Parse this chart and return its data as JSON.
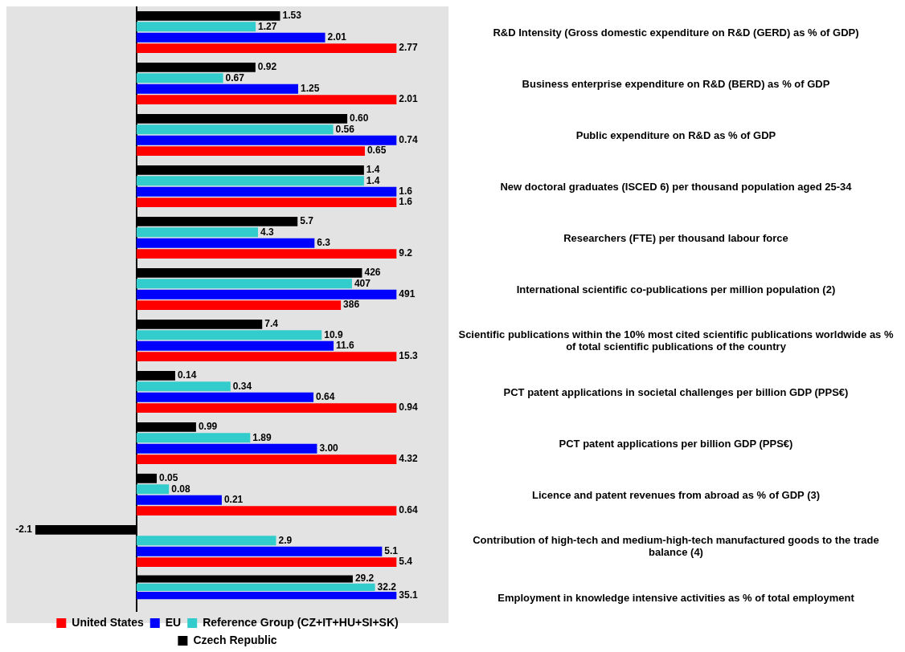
{
  "chart_data": [
    {
      "type": "bar",
      "orientation": "horizontal",
      "categories": [
        "R&D Intensity (Gross domestic expenditure on R&D (GERD) as % of GDP)"
      ],
      "series": [
        {
          "color": "#ff0000",
          "values": [
            2.77
          ],
          "value_labels": [
            "2.77"
          ]
        },
        {
          "color": "#0000ff",
          "values": [
            2.01
          ],
          "value_labels": [
            "2.01"
          ]
        },
        {
          "color": "#33cccc",
          "values": [
            1.27
          ],
          "value_labels": [
            "1.27"
          ]
        },
        {
          "color": "#000000",
          "values": [
            1.53
          ],
          "value_labels": [
            "1.53"
          ]
        }
      ]
    },
    {
      "type": "bar",
      "orientation": "horizontal",
      "categories": [
        "Business enterprise expenditure on R&D (BERD) as % of GDP"
      ],
      "series": [
        {
          "color": "#ff0000",
          "values": [
            2.01
          ],
          "value_labels": [
            "2.01"
          ]
        },
        {
          "color": "#0000ff",
          "values": [
            1.25
          ],
          "value_labels": [
            "1.25"
          ]
        },
        {
          "color": "#33cccc",
          "values": [
            0.67
          ],
          "value_labels": [
            "0.67"
          ]
        },
        {
          "color": "#000000",
          "values": [
            0.92
          ],
          "value_labels": [
            "0.92"
          ]
        }
      ]
    },
    {
      "type": "bar",
      "orientation": "horizontal",
      "categories": [
        "Public expenditure on R&D as % of GDP"
      ],
      "series": [
        {
          "color": "#ff0000",
          "values": [
            0.65
          ],
          "value_labels": [
            "0.65"
          ]
        },
        {
          "color": "#0000ff",
          "values": [
            0.74
          ],
          "value_labels": [
            "0.74"
          ]
        },
        {
          "color": "#33cccc",
          "values": [
            0.56
          ],
          "value_labels": [
            "0.56"
          ]
        },
        {
          "color": "#000000",
          "values": [
            0.6
          ],
          "value_labels": [
            "0.60"
          ]
        }
      ]
    },
    {
      "type": "bar",
      "orientation": "horizontal",
      "categories": [
        "New doctoral graduates (ISCED 6) per thousand population aged 25-34"
      ],
      "series": [
        {
          "color": "#ff0000",
          "values": [
            1.6
          ],
          "value_labels": [
            "1.6"
          ]
        },
        {
          "color": "#0000ff",
          "values": [
            1.6
          ],
          "value_labels": [
            "1.6"
          ]
        },
        {
          "color": "#33cccc",
          "values": [
            1.4
          ],
          "value_labels": [
            "1.4"
          ]
        },
        {
          "color": "#000000",
          "values": [
            1.4
          ],
          "value_labels": [
            "1.4"
          ]
        }
      ]
    },
    {
      "type": "bar",
      "orientation": "horizontal",
      "categories": [
        "Researchers (FTE) per thousand labour force"
      ],
      "series": [
        {
          "color": "#ff0000",
          "values": [
            9.2
          ],
          "value_labels": [
            "9.2"
          ]
        },
        {
          "color": "#0000ff",
          "values": [
            6.3
          ],
          "value_labels": [
            "6.3"
          ]
        },
        {
          "color": "#33cccc",
          "values": [
            4.3
          ],
          "value_labels": [
            "4.3"
          ]
        },
        {
          "color": "#000000",
          "values": [
            5.7
          ],
          "value_labels": [
            "5.7"
          ]
        }
      ]
    },
    {
      "type": "bar",
      "orientation": "horizontal",
      "categories": [
        "International scientific co-publications per million population (2)"
      ],
      "series": [
        {
          "color": "#ff0000",
          "values": [
            386
          ],
          "value_labels": [
            "386"
          ]
        },
        {
          "color": "#0000ff",
          "values": [
            491
          ],
          "value_labels": [
            "491"
          ]
        },
        {
          "color": "#33cccc",
          "values": [
            407
          ],
          "value_labels": [
            "407"
          ]
        },
        {
          "color": "#000000",
          "values": [
            426
          ],
          "value_labels": [
            "426"
          ]
        }
      ]
    },
    {
      "type": "bar",
      "orientation": "horizontal",
      "categories": [
        "Scientific publications within the 10% most cited scientific publications worldwide as % of total scientific publications of the country"
      ],
      "series": [
        {
          "color": "#ff0000",
          "values": [
            15.3
          ],
          "value_labels": [
            "15.3"
          ]
        },
        {
          "color": "#0000ff",
          "values": [
            11.6
          ],
          "value_labels": [
            "11.6"
          ]
        },
        {
          "color": "#33cccc",
          "values": [
            10.9
          ],
          "value_labels": [
            "10.9"
          ]
        },
        {
          "color": "#000000",
          "values": [
            7.4
          ],
          "value_labels": [
            "7.4"
          ]
        }
      ]
    },
    {
      "type": "bar",
      "orientation": "horizontal",
      "categories": [
        "PCT patent applications in societal challenges per billion GDP (PPS€)"
      ],
      "series": [
        {
          "color": "#ff0000",
          "values": [
            0.94
          ],
          "value_labels": [
            "0.94"
          ]
        },
        {
          "color": "#0000ff",
          "values": [
            0.64
          ],
          "value_labels": [
            "0.64"
          ]
        },
        {
          "color": "#33cccc",
          "values": [
            0.34
          ],
          "value_labels": [
            "0.34"
          ]
        },
        {
          "color": "#000000",
          "values": [
            0.14
          ],
          "value_labels": [
            "0.14"
          ]
        }
      ]
    },
    {
      "type": "bar",
      "orientation": "horizontal",
      "categories": [
        "PCT patent applications per billion GDP (PPS€)"
      ],
      "series": [
        {
          "color": "#ff0000",
          "values": [
            4.32
          ],
          "value_labels": [
            "4.32"
          ]
        },
        {
          "color": "#0000ff",
          "values": [
            3.0
          ],
          "value_labels": [
            "3.00"
          ]
        },
        {
          "color": "#33cccc",
          "values": [
            1.89
          ],
          "value_labels": [
            "1.89"
          ]
        },
        {
          "color": "#000000",
          "values": [
            0.99
          ],
          "value_labels": [
            "0.99"
          ]
        }
      ]
    },
    {
      "type": "bar",
      "orientation": "horizontal",
      "categories": [
        "Licence and patent revenues from abroad as % of GDP (3)"
      ],
      "series": [
        {
          "color": "#ff0000",
          "values": [
            0.64
          ],
          "value_labels": [
            "0.64"
          ]
        },
        {
          "color": "#0000ff",
          "values": [
            0.21
          ],
          "value_labels": [
            "0.21"
          ]
        },
        {
          "color": "#33cccc",
          "values": [
            0.08
          ],
          "value_labels": [
            "0.08"
          ]
        },
        {
          "color": "#000000",
          "values": [
            0.05
          ],
          "value_labels": [
            "0.05"
          ]
        }
      ]
    },
    {
      "type": "bar",
      "orientation": "horizontal",
      "categories": [
        "Contribution of high-tech and medium-high-tech manufactured goods to the trade balance (4)"
      ],
      "series": [
        {
          "color": "#ff0000",
          "values": [
            5.4
          ],
          "value_labels": [
            "5.4"
          ]
        },
        {
          "color": "#0000ff",
          "values": [
            5.1
          ],
          "value_labels": [
            "5.1"
          ]
        },
        {
          "color": "#33cccc",
          "values": [
            2.9
          ],
          "value_labels": [
            "2.9"
          ]
        },
        {
          "color": "#000000",
          "values": [
            -2.1
          ],
          "value_labels": [
            "-2.1"
          ]
        }
      ]
    },
    {
      "type": "bar",
      "orientation": "horizontal",
      "legend": "bottom",
      "categories": [
        "Employment in knowledge intensive activities as % of total employment"
      ],
      "series": [
        {
          "name": "United States",
          "color": "#ff0000",
          "values": [
            null
          ],
          "value_labels": [
            null
          ]
        },
        {
          "name": "EU",
          "color": "#0000ff",
          "values": [
            35.1
          ],
          "value_labels": [
            "35.1"
          ]
        },
        {
          "name": "Reference Group (CZ+IT+HU+SI+SK)",
          "color": "#33cccc",
          "values": [
            32.2
          ],
          "value_labels": [
            "32.2"
          ]
        },
        {
          "name": "Czech Republic",
          "color": "#000000",
          "values": [
            29.2
          ],
          "value_labels": [
            "29.2"
          ]
        }
      ]
    }
  ]
}
